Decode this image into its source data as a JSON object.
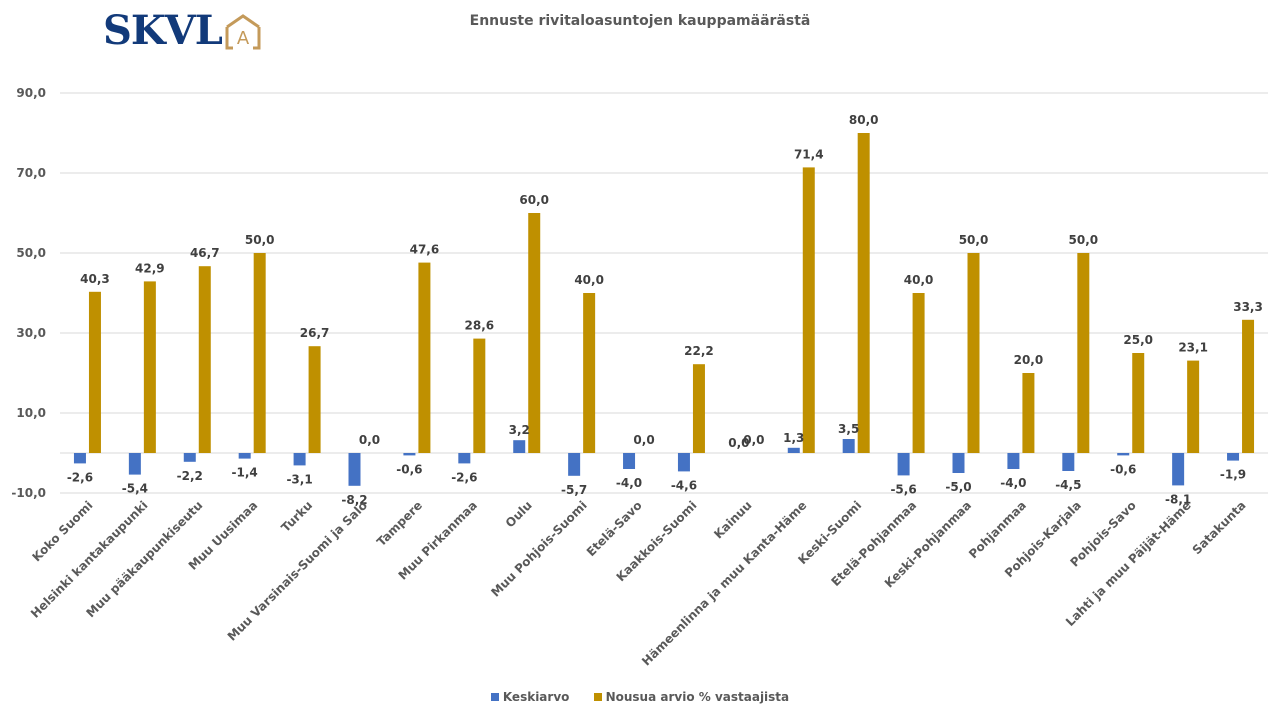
{
  "logo": {
    "text": "SKVL",
    "badge_letter": "A",
    "text_color": "#123a7a",
    "badge_color": "#c49a5a"
  },
  "chart_data": {
    "type": "bar",
    "title": "Ennuste rivitaloasuntojen kauppamäärästä",
    "xlabel": "",
    "ylabel": "",
    "ylim": [
      -10,
      90
    ],
    "yticks": [
      90,
      70,
      50,
      30,
      10,
      -10
    ],
    "ytick_labels": [
      "90,0",
      "70,0",
      "50,0",
      "30,0",
      "10,0",
      "-10,0"
    ],
    "grid": true,
    "legend_position": "bottom",
    "categories": [
      "Koko Suomi",
      "Helsinki kantakaupunki",
      "Muu pääkaupunkiseutu",
      "Muu Uusimaa",
      "Turku",
      "Muu Varsinais-Suomi ja Salo",
      "Tampere",
      "Muu Pirkanmaa",
      "Oulu",
      "Muu Pohjois-Suomi",
      "Etelä-Savo",
      "Kaakkois-Suomi",
      "Kainuu",
      "Hämeenlinna ja muu Kanta-Häme",
      "Keski-Suomi",
      "Etelä-Pohjanmaa",
      "Keski-Pohjanmaa",
      "Pohjanmaa",
      "Pohjois-Karjala",
      "Pohjois-Savo",
      "Lahti ja muu Päijät-Häme",
      "Satakunta"
    ],
    "series": [
      {
        "name": "Keskiarvo",
        "color": "#4472c4",
        "values": [
          -2.6,
          -5.4,
          -2.2,
          -1.4,
          -3.1,
          -8.2,
          -0.6,
          -2.6,
          3.2,
          -5.7,
          -4.0,
          -4.6,
          0.0,
          1.3,
          3.5,
          -5.6,
          -5.0,
          -4.0,
          -4.5,
          -0.6,
          -8.1,
          -1.9
        ],
        "labels": [
          "-2,6",
          "-5,4",
          "-2,2",
          "-1,4",
          "-3,1",
          "-8,2",
          "-0,6",
          "-2,6",
          "3,2",
          "-5,7",
          "-4,0",
          "-4,6",
          "0,0",
          "1,3",
          "3,5",
          "-5,6",
          "-5,0",
          "-4,0",
          "-4,5",
          "-0,6",
          "-8,1",
          "-1,9"
        ]
      },
      {
        "name": "Nousua arvio % vastaajista",
        "color": "#bf9000",
        "values": [
          40.3,
          42.9,
          46.7,
          50.0,
          26.7,
          0.0,
          47.6,
          28.6,
          60.0,
          40.0,
          0.0,
          22.2,
          0.0,
          71.4,
          80.0,
          40.0,
          50.0,
          20.0,
          50.0,
          25.0,
          23.1,
          33.3
        ],
        "labels": [
          "40,3",
          "42,9",
          "46,7",
          "50,0",
          "26,7",
          "0,0",
          "47,6",
          "28,6",
          "60,0",
          "40,0",
          "0,0",
          "22,2",
          "0,0",
          "71,4",
          "80,0",
          "40,0",
          "50,0",
          "20,0",
          "50,0",
          "25,0",
          "23,1",
          "33,3"
        ]
      }
    ]
  }
}
